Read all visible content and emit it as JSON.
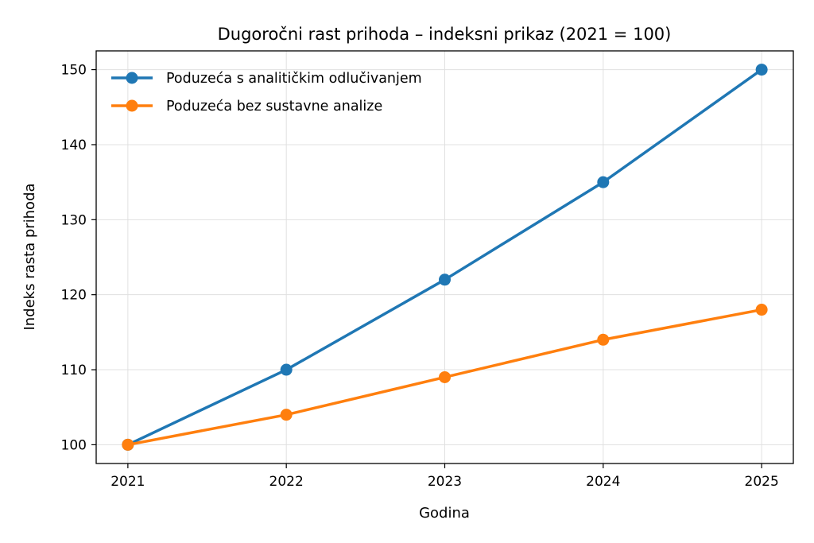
{
  "chart_data": {
    "type": "line",
    "title": "Dugoročni rast prihoda – indeksni prikaz (2021 = 100)",
    "xlabel": "Godina",
    "ylabel": "Indeks rasta prihoda",
    "x": [
      2021,
      2022,
      2023,
      2024,
      2025
    ],
    "x_tick_labels": [
      "2021",
      "2022",
      "2023",
      "2024",
      "2025"
    ],
    "y_ticks": [
      100,
      110,
      120,
      130,
      140,
      150
    ],
    "y_tick_labels": [
      "100",
      "110",
      "120",
      "130",
      "140",
      "150"
    ],
    "xlim": [
      2020.8,
      2025.2
    ],
    "ylim": [
      97.5,
      152.5
    ],
    "grid": true,
    "legend_position": "top-left",
    "series": [
      {
        "name": "Poduzeća s analitičkim odlučivanjem",
        "color": "#1f77b4",
        "values": [
          100,
          110,
          122,
          135,
          150
        ]
      },
      {
        "name": "Poduzeća bez sustavne analize",
        "color": "#ff7f0e",
        "values": [
          100,
          104,
          109,
          114,
          118
        ]
      }
    ]
  }
}
